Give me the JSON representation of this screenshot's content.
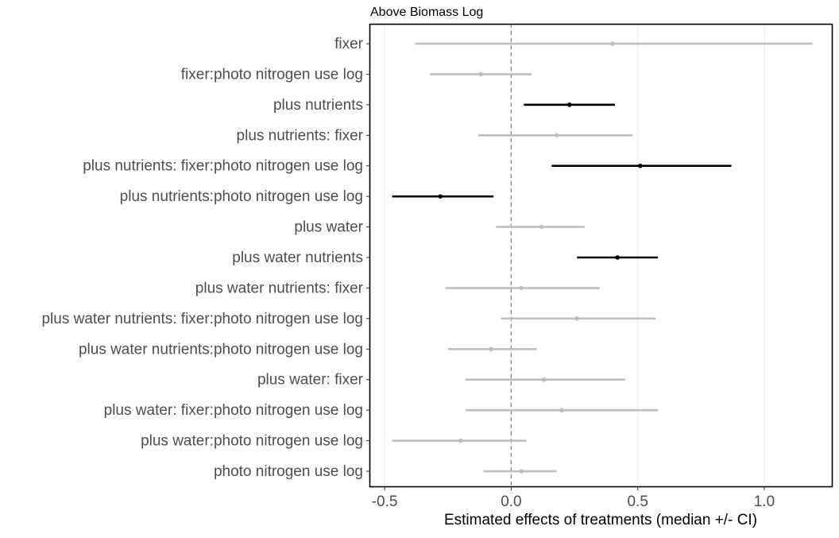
{
  "chart_data": {
    "type": "forest",
    "title": "Above Biomass Log",
    "xlabel": "Estimated effects of treatments (median +/- CI)",
    "ylabel": "",
    "xlim": [
      -0.56,
      1.27
    ],
    "xticks": [
      -0.5,
      0.0,
      0.5,
      1.0
    ],
    "xtick_labels": [
      "-0.5",
      "0.0",
      "0.5",
      "1.0"
    ],
    "reference_line": 0,
    "grid": true,
    "colors": {
      "significant": "#000000",
      "not_significant": "#bebebe",
      "reference_line": "#808080",
      "grid": "#ebebeb",
      "axis_text": "#4d4d4d"
    },
    "rows": [
      {
        "label": "fixer",
        "median": 0.4,
        "lower": -0.38,
        "upper": 1.19,
        "significant": false
      },
      {
        "label": "fixer:photo nitrogen use log",
        "median": -0.12,
        "lower": -0.32,
        "upper": 0.08,
        "significant": false
      },
      {
        "label": "plus nutrients",
        "median": 0.23,
        "lower": 0.05,
        "upper": 0.41,
        "significant": true
      },
      {
        "label": "plus nutrients: fixer",
        "median": 0.18,
        "lower": -0.13,
        "upper": 0.48,
        "significant": false
      },
      {
        "label": "plus nutrients: fixer:photo nitrogen use log",
        "median": 0.51,
        "lower": 0.16,
        "upper": 0.87,
        "significant": true
      },
      {
        "label": "plus nutrients:photo nitrogen use log",
        "median": -0.28,
        "lower": -0.47,
        "upper": -0.07,
        "significant": true
      },
      {
        "label": "plus water",
        "median": 0.12,
        "lower": -0.06,
        "upper": 0.29,
        "significant": false
      },
      {
        "label": "plus water nutrients",
        "median": 0.42,
        "lower": 0.26,
        "upper": 0.58,
        "significant": true
      },
      {
        "label": "plus water nutrients: fixer",
        "median": 0.04,
        "lower": -0.26,
        "upper": 0.35,
        "significant": false
      },
      {
        "label": "plus water nutrients: fixer:photo nitrogen use log",
        "median": 0.26,
        "lower": -0.04,
        "upper": 0.57,
        "significant": false
      },
      {
        "label": "plus water nutrients:photo nitrogen use log",
        "median": -0.08,
        "lower": -0.25,
        "upper": 0.1,
        "significant": false
      },
      {
        "label": "plus water: fixer",
        "median": 0.13,
        "lower": -0.18,
        "upper": 0.45,
        "significant": false
      },
      {
        "label": "plus water: fixer:photo nitrogen use log",
        "median": 0.2,
        "lower": -0.18,
        "upper": 0.58,
        "significant": false
      },
      {
        "label": "plus water:photo nitrogen use log",
        "median": -0.2,
        "lower": -0.47,
        "upper": 0.06,
        "significant": false
      },
      {
        "label": "photo nitrogen use log",
        "median": 0.04,
        "lower": -0.11,
        "upper": 0.18,
        "significant": false
      }
    ]
  }
}
